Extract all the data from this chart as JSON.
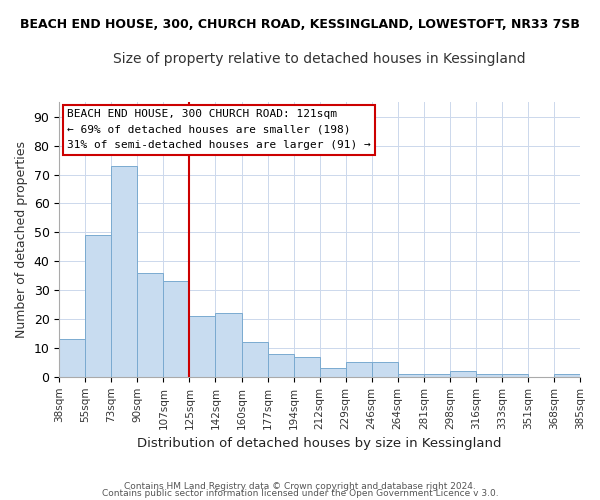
{
  "title": "BEACH END HOUSE, 300, CHURCH ROAD, KESSINGLAND, LOWESTOFT, NR33 7SB",
  "subtitle": "Size of property relative to detached houses in Kessingland",
  "xlabel": "Distribution of detached houses by size in Kessingland",
  "ylabel": "Number of detached properties",
  "bar_values": [
    13,
    49,
    73,
    36,
    33,
    21,
    22,
    12,
    8,
    7,
    3,
    5,
    5,
    1,
    1,
    2,
    1,
    1,
    0,
    1
  ],
  "bar_labels": [
    "38sqm",
    "55sqm",
    "73sqm",
    "90sqm",
    "107sqm",
    "125sqm",
    "142sqm",
    "160sqm",
    "177sqm",
    "194sqm",
    "212sqm",
    "229sqm",
    "246sqm",
    "264sqm",
    "281sqm",
    "298sqm",
    "316sqm",
    "333sqm",
    "351sqm",
    "368sqm",
    "385sqm"
  ],
  "bar_color": "#c8dcf0",
  "bar_edge_color": "#7aaad0",
  "highlight_line_color": "#cc0000",
  "highlight_tick_index": 5,
  "ylim": [
    0,
    95
  ],
  "yticks": [
    0,
    10,
    20,
    30,
    40,
    50,
    60,
    70,
    80,
    90
  ],
  "annotation_title": "BEACH END HOUSE, 300 CHURCH ROAD: 121sqm",
  "annotation_line1": "← 69% of detached houses are smaller (198)",
  "annotation_line2": "31% of semi-detached houses are larger (91) →",
  "footer_line1": "Contains HM Land Registry data © Crown copyright and database right 2024.",
  "footer_line2": "Contains public sector information licensed under the Open Government Licence v 3.0."
}
